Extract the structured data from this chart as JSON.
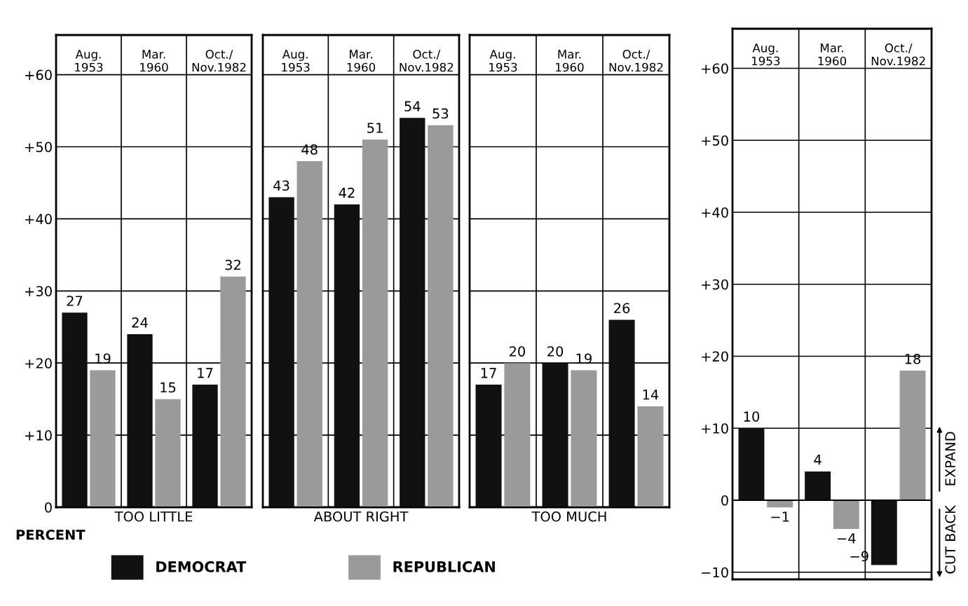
{
  "chart_data": [
    {
      "type": "bar",
      "xlabel": "TOO LITTLE",
      "categories": [
        "Aug.\n1953",
        "Mar.\n1960",
        "Oct./\nNov.1982"
      ],
      "series": [
        {
          "name": "DEMOCRAT",
          "color": "#111111",
          "values": [
            27,
            24,
            17
          ]
        },
        {
          "name": "REPUBLICAN",
          "color": "#9a9a9a",
          "values": [
            19,
            15,
            32
          ]
        }
      ],
      "ylim": [
        0,
        65.5
      ],
      "yticks": [
        0,
        {
          "value": 10,
          "label": "+10"
        },
        {
          "value": 20,
          "label": "+20"
        },
        {
          "value": 30,
          "label": "+30"
        },
        {
          "value": 40,
          "label": "+40"
        },
        {
          "value": 50,
          "label": "+50"
        },
        {
          "value": 60,
          "label": "+60"
        }
      ],
      "grid": true,
      "data_labels": true,
      "legend": "bottom right",
      "annotations": [
        "PERCENT"
      ]
    },
    {
      "type": "bar",
      "xlabel": "ABOUT RIGHT",
      "categories": [
        "Aug.\n1953",
        "Mar.\n1960",
        "Oct./\nNov.1982"
      ],
      "series": [
        {
          "color": "#111111",
          "values": [
            43,
            42,
            54
          ]
        },
        {
          "color": "#9a9a9a",
          "values": [
            48,
            51,
            53
          ]
        }
      ],
      "ylim": [
        0,
        65.5
      ],
      "yticks": [
        0,
        10,
        20,
        30,
        40,
        50,
        60
      ],
      "tick_labels": "x",
      "grid": true,
      "data_labels": true
    },
    {
      "type": "bar",
      "xlabel": "TOO MUCH",
      "categories": [
        "Aug.\n1953",
        "Mar.\n1960",
        "Oct./\nNov.1982"
      ],
      "series": [
        {
          "color": "#111111",
          "values": [
            17,
            20,
            26
          ]
        },
        {
          "color": "#9a9a9a",
          "values": [
            20,
            19,
            14
          ]
        }
      ],
      "ylim": [
        0,
        65.5
      ],
      "yticks": [
        0,
        10,
        20,
        30,
        40,
        50,
        60
      ],
      "tick_labels": "x",
      "grid": true,
      "data_labels": true
    },
    {
      "type": "bar",
      "categories": [
        "Aug.\n1953",
        "Mar.\n1960",
        "Oct./\nNov.1982"
      ],
      "series": [
        {
          "color": "#111111",
          "values": [
            10,
            4,
            -9
          ]
        },
        {
          "color": "#9a9a9a",
          "values": [
            -1,
            -4,
            18
          ]
        }
      ],
      "ylim": [
        -11,
        65.5
      ],
      "yticks": [
        {
          "value": -10,
          "label": "−10"
        },
        0,
        {
          "value": 10,
          "label": "+10"
        },
        {
          "value": 20,
          "label": "+20"
        },
        {
          "value": 30,
          "label": "+30"
        },
        {
          "value": 40,
          "label": "+40"
        },
        {
          "value": 50,
          "label": "+50"
        },
        {
          "value": 60,
          "label": "+60"
        }
      ],
      "grid": true,
      "data_labels": true,
      "annotations": [
        "EXPAND",
        "CUT BACK"
      ]
    }
  ]
}
